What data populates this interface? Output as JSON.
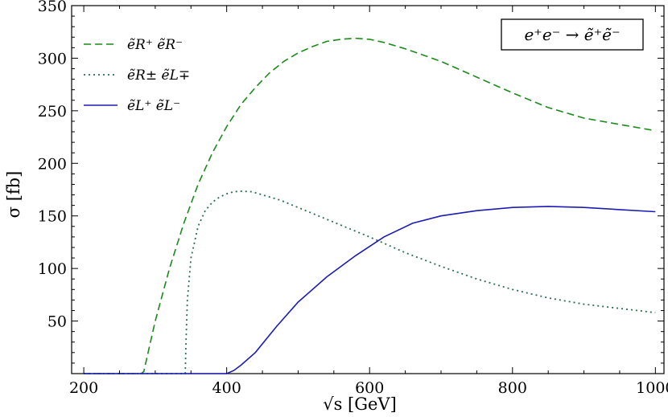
{
  "chart_data": {
    "type": "line",
    "xlabel": "√s [GeV]",
    "ylabel": "σ [fb]",
    "xlim": [
      183,
      1012
    ],
    "ylim": [
      0,
      350
    ],
    "xticks": [
      200,
      400,
      600,
      800,
      1000
    ],
    "yticks": [
      50,
      100,
      150,
      200,
      250,
      300,
      350
    ],
    "grid": false,
    "legend_placement": "top-left",
    "annotation": "e⁺e⁻ → ẽ⁺ẽ⁻",
    "series": [
      {
        "name": "ẽR⁺ ẽR⁻",
        "style": "dashed",
        "color": "#1a8a1a",
        "x": [
          200,
          280,
          284,
          290,
          300,
          320,
          340,
          360,
          380,
          400,
          420,
          440,
          460,
          480,
          500,
          520,
          540,
          560,
          580,
          600,
          620,
          650,
          700,
          750,
          800,
          850,
          900,
          950,
          1000
        ],
        "y": [
          0,
          0,
          2,
          20,
          50,
          100,
          143,
          180,
          210,
          235,
          256,
          272,
          286,
          297,
          305,
          311,
          316,
          318,
          319,
          318,
          315,
          309,
          297,
          282,
          267,
          253,
          243,
          237,
          231
        ]
      },
      {
        "name": "ẽR± ẽL∓",
        "style": "dotted",
        "color": "#2a6e50",
        "x": [
          200,
          342,
          343,
          345,
          350,
          360,
          370,
          380,
          390,
          400,
          410,
          420,
          435,
          450,
          475,
          500,
          550,
          600,
          650,
          700,
          750,
          800,
          850,
          900,
          950,
          1000
        ],
        "y": [
          0,
          0,
          30,
          70,
          110,
          140,
          155,
          163,
          168,
          171,
          173,
          173.5,
          173,
          170,
          165,
          158,
          144,
          130,
          115,
          102,
          90,
          80,
          72,
          66,
          62,
          58
        ]
      },
      {
        "name": "ẽL⁺ ẽL⁻",
        "style": "solid",
        "color": "#1c1cb4",
        "x": [
          200,
          400,
          410,
          420,
          440,
          470,
          500,
          540,
          580,
          620,
          660,
          700,
          750,
          800,
          850,
          900,
          950,
          1000
        ],
        "y": [
          0,
          0,
          3,
          8,
          20,
          45,
          68,
          92,
          112,
          130,
          143,
          150,
          155,
          158,
          159,
          158,
          156,
          154
        ]
      }
    ]
  }
}
